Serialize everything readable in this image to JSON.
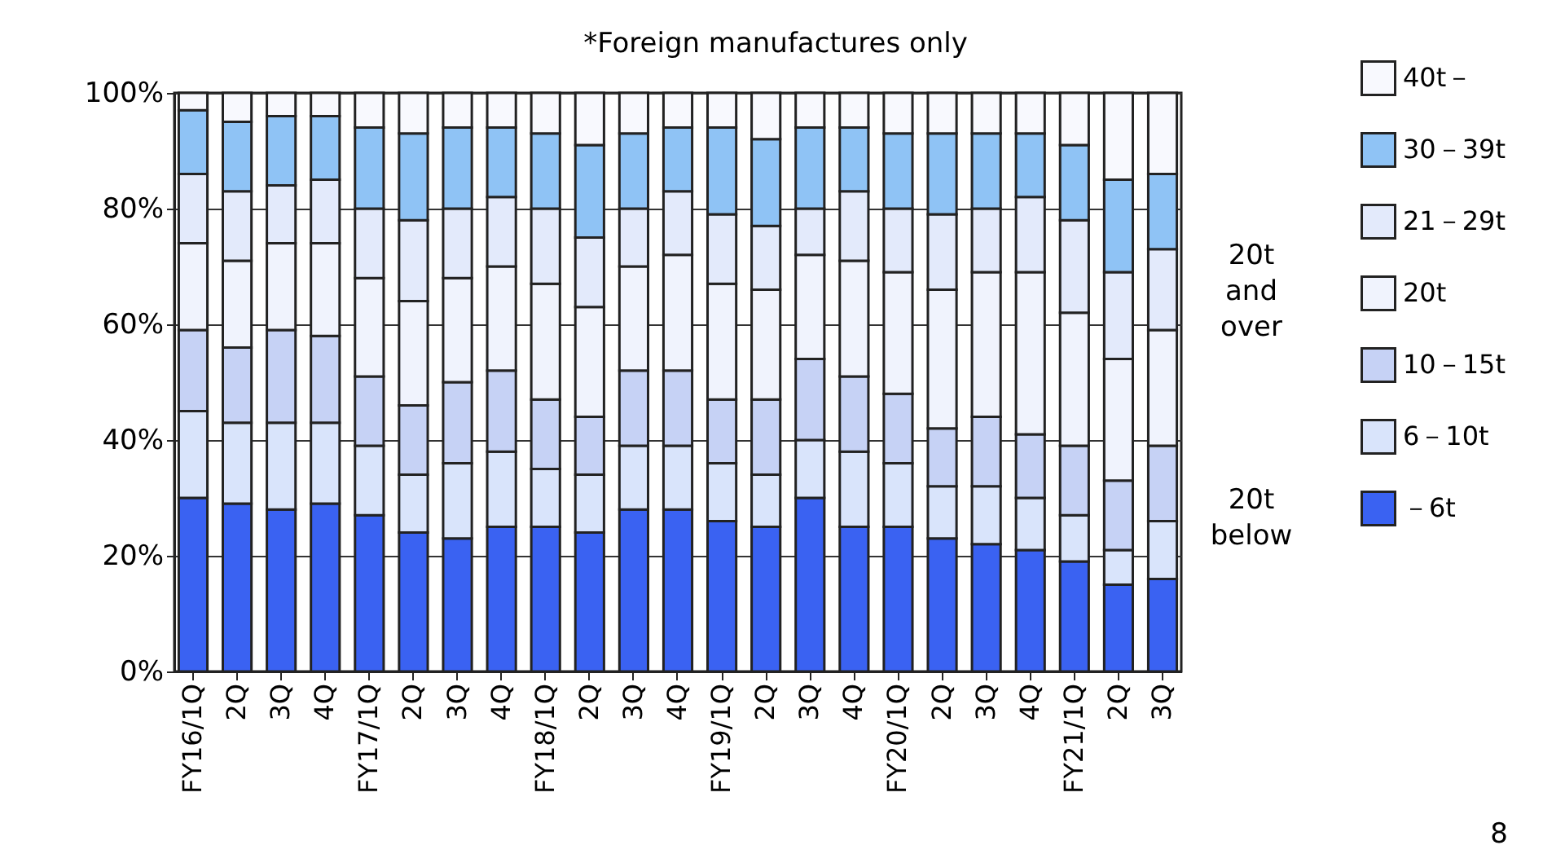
{
  "chart_data": {
    "type": "bar",
    "stacked": true,
    "categories": [
      "FY16/1Q",
      "2Q",
      "3Q",
      "4Q",
      "FY17/1Q",
      "2Q",
      "3Q",
      "4Q",
      "FY18/1Q",
      "2Q",
      "3Q",
      "4Q",
      "FY19/1Q",
      "2Q",
      "3Q",
      "4Q",
      "FY20/1Q",
      "2Q",
      "3Q",
      "4Q",
      "FY21/1Q",
      "2Q",
      "3Q"
    ],
    "series": [
      {
        "name": "－6t",
        "color": "#3a62f2",
        "values": [
          30,
          29,
          28,
          29,
          27,
          24,
          23,
          25,
          25,
          24,
          28,
          28,
          26,
          25,
          30,
          25,
          25,
          23,
          22,
          21,
          19,
          15,
          16
        ]
      },
      {
        "name": "6－10t",
        "color": "#d9e4fb",
        "values": [
          15,
          14,
          15,
          14,
          12,
          10,
          13,
          13,
          10,
          10,
          11,
          11,
          10,
          9,
          10,
          13,
          11,
          9,
          10,
          9,
          8,
          6,
          10
        ]
      },
      {
        "name": "10－15t",
        "color": "#c6d2f5",
        "values": [
          14,
          13,
          16,
          15,
          12,
          12,
          14,
          14,
          12,
          10,
          13,
          13,
          11,
          13,
          14,
          13,
          12,
          10,
          12,
          11,
          12,
          12,
          13
        ]
      },
      {
        "name": "20t",
        "color": "#f0f3fd",
        "values": [
          15,
          15,
          15,
          16,
          17,
          18,
          18,
          18,
          20,
          19,
          18,
          20,
          20,
          19,
          18,
          20,
          21,
          24,
          25,
          28,
          23,
          21,
          20
        ]
      },
      {
        "name": "21－29t",
        "color": "#e3eafb",
        "values": [
          12,
          12,
          10,
          11,
          12,
          14,
          12,
          12,
          13,
          12,
          10,
          11,
          12,
          11,
          8,
          12,
          11,
          13,
          11,
          13,
          16,
          15,
          14
        ]
      },
      {
        "name": "30－39t",
        "color": "#8fc3f5",
        "values": [
          11,
          12,
          12,
          11,
          14,
          15,
          14,
          12,
          13,
          16,
          13,
          11,
          15,
          15,
          14,
          11,
          13,
          14,
          13,
          11,
          13,
          16,
          13
        ]
      },
      {
        "name": "40t－",
        "color": "#f8f9fe",
        "values": [
          3,
          5,
          4,
          4,
          6,
          7,
          6,
          6,
          7,
          9,
          7,
          6,
          6,
          8,
          6,
          6,
          7,
          7,
          7,
          7,
          9,
          15,
          14
        ]
      }
    ],
    "ylim": [
      0,
      100
    ],
    "yticks": [
      {
        "value": 0,
        "label": "0%"
      },
      {
        "value": 20,
        "label": "20%"
      },
      {
        "value": 40,
        "label": "40%"
      },
      {
        "value": 60,
        "label": "60%"
      },
      {
        "value": 80,
        "label": "80%"
      },
      {
        "value": 100,
        "label": "100%"
      }
    ],
    "grid": "y",
    "legend": "right",
    "annotations": [
      "*Foreign manufactures only",
      "20t and over",
      "20t below",
      "8"
    ]
  }
}
